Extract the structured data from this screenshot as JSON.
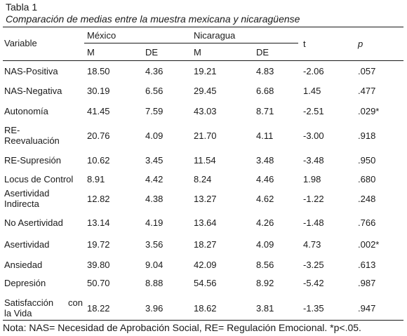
{
  "table": {
    "title": "Tabla 1",
    "subtitle": "Comparación de medias entre la muestra mexicana y nicaragüense",
    "headers": {
      "variable": "Variable",
      "mexico": "México",
      "nicaragua": "Nicaragua",
      "m": "M",
      "de": "DE",
      "t": "t",
      "p": "p"
    },
    "rows": [
      {
        "label": [
          "NAS-Positiva"
        ],
        "mx_m": "18.50",
        "mx_de": "4.36",
        "ni_m": "19.21",
        "ni_de": "4.83",
        "t": "-2.06",
        "p": ".057"
      },
      {
        "label": [
          "NAS-Negativa"
        ],
        "mx_m": "30.19",
        "mx_de": "6.56",
        "ni_m": "29.45",
        "ni_de": "6.68",
        "t": "1.45",
        "p": ".477"
      },
      {
        "label": [
          "Autonomía"
        ],
        "mx_m": "41.45",
        "mx_de": "7.59",
        "ni_m": "43.03",
        "ni_de": "8.71",
        "t": "-2.51",
        "p": ".029*"
      },
      {
        "label": [
          "RE-",
          "Reevaluación"
        ],
        "mx_m": "20.76",
        "mx_de": "4.09",
        "ni_m": "21.70",
        "ni_de": "4.11",
        "t": "-3.00",
        "p": ".918"
      },
      {
        "label": [
          "RE-Supresión"
        ],
        "mx_m": "10.62",
        "mx_de": "3.45",
        "ni_m": "11.54",
        "ni_de": "3.48",
        "t": "-3.48",
        "p": ".950"
      },
      {
        "label": [
          "Locus de Control"
        ],
        "mx_m": "8.91",
        "mx_de": "4.42",
        "ni_m": "8.24",
        "ni_de": "4.46",
        "t": "1.98",
        "p": ".680"
      },
      {
        "label": [
          "Asertividad",
          "Indirecta"
        ],
        "mx_m": "12.82",
        "mx_de": "4.38",
        "ni_m": "13.27",
        "ni_de": "4.62",
        "t": "-1.22",
        "p": ".248"
      },
      {
        "label": [
          "No Asertividad"
        ],
        "mx_m": "13.14",
        "mx_de": "4.19",
        "ni_m": "13.64",
        "ni_de": "4.26",
        "t": "-1.48",
        "p": ".766"
      },
      {
        "label": [
          "Asertividad"
        ],
        "mx_m": "19.72",
        "mx_de": "3.56",
        "ni_m": "18.27",
        "ni_de": "4.09",
        "t": "4.73",
        "p": ".002*"
      },
      {
        "label": [
          "Ansiedad"
        ],
        "mx_m": "39.80",
        "mx_de": "9.04",
        "ni_m": "42.09",
        "ni_de": "8.56",
        "t": "-3.25",
        "p": ".613"
      },
      {
        "label": [
          "Depresión"
        ],
        "mx_m": "50.70",
        "mx_de": "8.88",
        "ni_m": "54.56",
        "ni_de": "8.92",
        "t": "-5.42",
        "p": ".987"
      },
      {
        "label": [
          "Satisfacción con",
          "la Vida"
        ],
        "mx_m": "18.22",
        "mx_de": "3.96",
        "ni_m": "18.62",
        "ni_de": "3.81",
        "t": "-1.35",
        "p": ".947"
      }
    ],
    "note": "Nota: NAS= Necesidad de Aprobación Social, RE= Regulación Emocional. *p<.05."
  }
}
